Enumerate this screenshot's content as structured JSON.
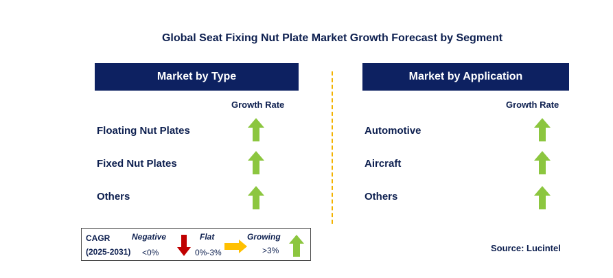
{
  "title": "Global Seat Fixing Nut Plate Market Growth Forecast by Segment",
  "left_panel": {
    "header": "Market by Type",
    "growth_rate_label": "Growth Rate",
    "items": [
      {
        "label": "Floating Nut Plates",
        "trend": "growing"
      },
      {
        "label": "Fixed Nut Plates",
        "trend": "growing"
      },
      {
        "label": "Others",
        "trend": "growing"
      }
    ]
  },
  "right_panel": {
    "header": "Market by Application",
    "growth_rate_label": "Growth Rate",
    "items": [
      {
        "label": "Automotive",
        "trend": "growing"
      },
      {
        "label": "Aircraft",
        "trend": "growing"
      },
      {
        "label": "Others",
        "trend": "growing"
      }
    ]
  },
  "legend": {
    "cagr_label": "CAGR",
    "period": "(2025-2031)",
    "negative_label": "Negative",
    "negative_value": "<0%",
    "flat_label": "Flat",
    "flat_value": "0%-3%",
    "growing_label": "Growing",
    "growing_value": ">3%"
  },
  "source": "Source: Lucintel",
  "colors": {
    "header_bg": "#0d2161",
    "text": "#0d1f4f",
    "growing_arrow": "#8cc63f",
    "negative_arrow": "#c00000",
    "flat_arrow": "#ffc000",
    "divider": "#f2b200"
  }
}
